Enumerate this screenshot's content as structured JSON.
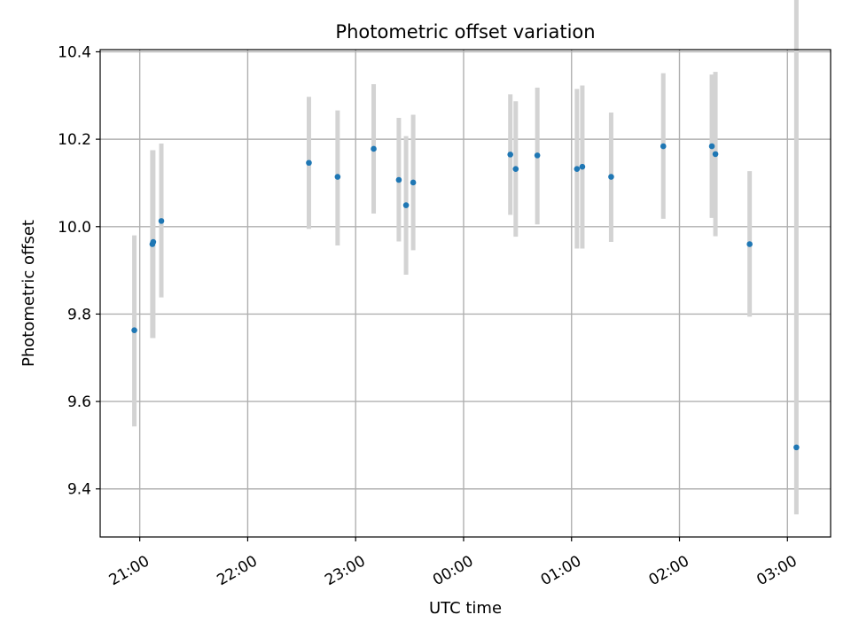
{
  "chart_data": {
    "type": "scatter",
    "title": "Photometric offset variation",
    "xlabel": "UTC time",
    "ylabel": "Photometric offset",
    "xlim": [
      20.6333,
      27.4
    ],
    "ylim": [
      9.29,
      10.405
    ],
    "grid": true,
    "x_ticks": [
      {
        "value": 21.0,
        "label": "21:00"
      },
      {
        "value": 22.0,
        "label": "22:00"
      },
      {
        "value": 23.0,
        "label": "23:00"
      },
      {
        "value": 24.0,
        "label": "00:00"
      },
      {
        "value": 25.0,
        "label": "01:00"
      },
      {
        "value": 26.0,
        "label": "02:00"
      },
      {
        "value": 27.0,
        "label": "03:00"
      }
    ],
    "y_ticks": [
      {
        "value": 9.4,
        "label": "9.4"
      },
      {
        "value": 9.6,
        "label": "9.6"
      },
      {
        "value": 9.8,
        "label": "9.8"
      },
      {
        "value": 10.0,
        "label": "10.0"
      },
      {
        "value": 10.2,
        "label": "10.2"
      },
      {
        "value": 10.4,
        "label": "10.4"
      }
    ],
    "colors": {
      "point": "#1f77b4",
      "errorbar": "#d3d3d3",
      "grid": "#b0b0b0",
      "axis": "#000000"
    },
    "series": [
      {
        "x": [
          20.95,
          21.117,
          21.125,
          21.2,
          22.567,
          22.833,
          23.167,
          23.4,
          23.467,
          23.533,
          24.433,
          24.483,
          24.683,
          25.05,
          25.1,
          25.367,
          25.85,
          26.3,
          26.333,
          26.65,
          27.083
        ],
        "y": [
          9.763,
          9.96,
          9.965,
          10.013,
          10.146,
          10.114,
          10.178,
          10.107,
          10.049,
          10.101,
          10.165,
          10.132,
          10.163,
          10.132,
          10.137,
          10.114,
          10.184,
          10.184,
          10.166,
          9.96,
          9.495
        ],
        "y_low": [
          9.543,
          9.745,
          9.745,
          9.838,
          9.995,
          9.957,
          10.03,
          9.966,
          9.89,
          9.946,
          10.027,
          9.977,
          10.005,
          9.95,
          9.95,
          9.965,
          10.018,
          10.02,
          9.978,
          9.794,
          9.342
        ],
        "y_high": [
          9.98,
          10.175,
          10.175,
          10.19,
          10.297,
          10.266,
          10.326,
          10.249,
          10.207,
          10.256,
          10.303,
          10.287,
          10.318,
          10.315,
          10.323,
          10.261,
          10.351,
          10.348,
          10.354,
          10.127,
          10.651
        ]
      }
    ]
  }
}
